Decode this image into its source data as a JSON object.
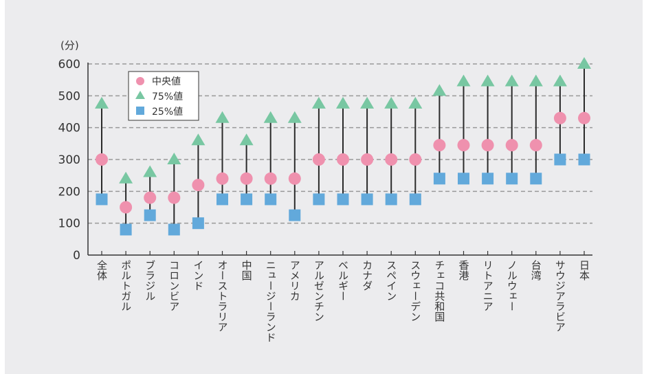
{
  "chart_data": {
    "type": "scatter",
    "title": "",
    "xlabel": "",
    "ylabel": "(分)",
    "ylim": [
      0,
      600
    ],
    "yticks": [
      "0",
      "100",
      "200",
      "300",
      "400",
      "500",
      "600"
    ],
    "grid": true,
    "legend_position": "top-left",
    "categories": [
      "全体",
      "ポルトガル",
      "ブラジル",
      "コロンビア",
      "インド",
      "オーストラリア",
      "中国",
      "ニュージーランド",
      "アメリカ",
      "アルゼンチン",
      "ベルギー",
      "カナダ",
      "スペイン",
      "スウェーデン",
      "チェコ共和国",
      "香港",
      "リトアニア",
      "ノルウェー",
      "台湾",
      "サウジアラビア",
      "日本"
    ],
    "series": [
      {
        "name": "中央値",
        "marker": "circle",
        "color": "#ef91ae",
        "values": [
          300,
          150,
          180,
          180,
          220,
          240,
          240,
          240,
          240,
          300,
          300,
          300,
          300,
          300,
          345,
          345,
          345,
          345,
          345,
          430,
          430
        ]
      },
      {
        "name": "75%値",
        "marker": "triangle",
        "color": "#78c7a2",
        "values": [
          475,
          240,
          260,
          300,
          360,
          430,
          360,
          430,
          430,
          475,
          475,
          475,
          475,
          475,
          515,
          545,
          545,
          545,
          545,
          545,
          600
        ]
      },
      {
        "name": "25%値",
        "marker": "square",
        "color": "#62a9db",
        "values": [
          175,
          80,
          125,
          80,
          100,
          175,
          175,
          175,
          125,
          175,
          175,
          175,
          175,
          175,
          240,
          240,
          240,
          240,
          240,
          300,
          300
        ]
      }
    ]
  }
}
